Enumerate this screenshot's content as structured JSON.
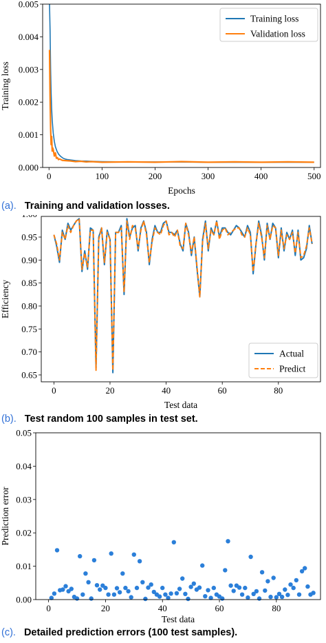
{
  "captions": [
    {
      "tag": "(a).",
      "text": "Training and validation losses."
    },
    {
      "tag": "(b).",
      "text": "Test random 100 samples in test set."
    },
    {
      "tag": "(c).",
      "text": "Detailed prediction errors (100 test samples)."
    }
  ],
  "colors": {
    "blue": "#1f77b4",
    "orange": "#ff7f0e",
    "errorDots": "#2b7fd9",
    "caption_tag": "#2f6fd6"
  },
  "chart_data": [
    {
      "type": "line",
      "xlabel": "Epochs",
      "ylabel": "Training loss",
      "xlim": [
        -12,
        512
      ],
      "ylim": [
        0,
        0.005
      ],
      "xticks": [
        0,
        100,
        200,
        300,
        400,
        500
      ],
      "yticks": [
        0.0,
        0.001,
        0.002,
        0.003,
        0.004,
        0.005
      ],
      "ytick_labels": [
        "0.000",
        "0.001",
        "0.002",
        "0.003",
        "0.004",
        "0.005"
      ],
      "legend": "top-right",
      "series": [
        {
          "name": "Training loss",
          "color": "#1f77b4",
          "x": [
            1,
            2,
            3,
            4,
            5,
            6,
            8,
            10,
            12,
            15,
            18,
            22,
            26,
            30,
            35,
            40,
            50,
            60,
            80,
            100,
            150,
            200,
            300,
            400,
            500
          ],
          "y": [
            0.005,
            0.0042,
            0.003,
            0.0023,
            0.0018,
            0.00145,
            0.00105,
            0.0008,
            0.00064,
            0.0005,
            0.00041,
            0.00034,
            0.00029,
            0.00026,
            0.00024,
            0.00023,
            0.00021,
            0.0002,
            0.00019,
            0.00018,
            0.00017,
            0.00017,
            0.00016,
            0.00016,
            0.00016
          ]
        },
        {
          "name": "Validation loss",
          "color": "#ff7f0e",
          "x": [
            1,
            2,
            3,
            4,
            5,
            6,
            7,
            8,
            10,
            12,
            14,
            16,
            18,
            20,
            25,
            30,
            40,
            50,
            60,
            70,
            80,
            100,
            150,
            200,
            250,
            300,
            350,
            400,
            450,
            500
          ],
          "y": [
            0.0036,
            0.0022,
            0.0012,
            0.0007,
            0.00095,
            0.0005,
            0.0006,
            0.00055,
            0.00035,
            0.00045,
            0.00028,
            0.0003,
            0.00024,
            0.00026,
            0.00022,
            0.00021,
            0.0002,
            0.00018,
            0.00019,
            0.00017,
            0.00018,
            0.00016,
            0.00017,
            0.00016,
            0.00018,
            0.00016,
            0.00017,
            0.00016,
            0.00017,
            0.00016
          ]
        }
      ]
    },
    {
      "type": "line",
      "xlabel": "Test data",
      "ylabel": "Efficiency",
      "xlim": [
        -4.5,
        95
      ],
      "ylim": [
        0.635,
        0.995
      ],
      "xticks": [
        0,
        20,
        40,
        60,
        80
      ],
      "yticks": [
        0.65,
        0.7,
        0.75,
        0.8,
        0.85,
        0.9,
        0.95,
        1.0
      ],
      "ytick_labels": [
        "0.65",
        "0.70",
        "0.75",
        "0.80",
        "0.85",
        "0.90",
        "0.95",
        "1.00"
      ],
      "legend": "bottom-right",
      "series": [
        {
          "name": "Actual",
          "color": "#1f77b4",
          "dash": false,
          "y": [
            0.955,
            0.93,
            0.895,
            0.965,
            0.945,
            0.98,
            0.965,
            0.975,
            0.985,
            0.99,
            0.875,
            0.92,
            0.88,
            0.97,
            0.965,
            0.665,
            0.95,
            0.97,
            0.89,
            0.965,
            0.945,
            0.655,
            0.96,
            0.96,
            0.975,
            0.825,
            0.99,
            0.95,
            0.97,
            0.975,
            0.92,
            0.97,
            0.985,
            0.96,
            0.89,
            0.945,
            0.975,
            0.96,
            0.96,
            0.98,
            0.985,
            0.96,
            0.96,
            0.955,
            0.965,
            0.935,
            0.92,
            0.98,
            0.96,
            0.91,
            0.95,
            0.88,
            0.82,
            0.945,
            0.985,
            0.92,
            0.97,
            0.955,
            0.985,
            0.95,
            0.97,
            0.97,
            0.96,
            0.955,
            0.965,
            0.975,
            0.97,
            0.96,
            0.95,
            0.975,
            0.96,
            0.87,
            0.935,
            0.985,
            0.955,
            0.9,
            0.98,
            0.945,
            0.98,
            0.97,
            0.905,
            0.97,
            0.92,
            0.96,
            0.945,
            0.965,
            0.91,
            0.965,
            0.9,
            0.905,
            0.925,
            0.975,
            0.935
          ]
        },
        {
          "name": "Predict",
          "color": "#ff7f0e",
          "dash": true,
          "y": [
            0.955,
            0.935,
            0.9,
            0.96,
            0.945,
            0.975,
            0.96,
            0.975,
            0.985,
            0.99,
            0.88,
            0.915,
            0.885,
            0.965,
            0.965,
            0.66,
            0.945,
            0.97,
            0.895,
            0.96,
            0.945,
            0.66,
            0.96,
            0.96,
            0.97,
            0.83,
            0.985,
            0.945,
            0.975,
            0.97,
            0.925,
            0.965,
            0.985,
            0.955,
            0.895,
            0.94,
            0.97,
            0.96,
            0.955,
            0.975,
            0.985,
            0.955,
            0.96,
            0.95,
            0.965,
            0.93,
            0.925,
            0.98,
            0.955,
            0.915,
            0.95,
            0.885,
            0.82,
            0.94,
            0.98,
            0.925,
            0.965,
            0.955,
            0.985,
            0.945,
            0.965,
            0.97,
            0.955,
            0.96,
            0.965,
            0.97,
            0.97,
            0.955,
            0.95,
            0.97,
            0.955,
            0.875,
            0.935,
            0.98,
            0.95,
            0.905,
            0.975,
            0.945,
            0.975,
            0.97,
            0.91,
            0.965,
            0.925,
            0.955,
            0.945,
            0.96,
            0.915,
            0.96,
            0.905,
            0.91,
            0.93,
            0.97,
            0.935
          ]
        }
      ]
    },
    {
      "type": "scatter",
      "xlabel": "Test data",
      "ylabel": "Prediction error",
      "xlim": [
        -4.5,
        95.5
      ],
      "ylim": [
        0,
        0.05
      ],
      "xticks": [
        0,
        20,
        40,
        60,
        80
      ],
      "yticks": [
        0.0,
        0.01,
        0.02,
        0.03,
        0.04,
        0.05
      ],
      "ytick_labels": [
        "0.00",
        "0.01",
        "0.02",
        "0.03",
        "0.04",
        "0.05"
      ],
      "color": "#2b7fd9",
      "x": [
        1,
        2,
        3,
        4,
        5,
        6,
        7,
        8,
        9,
        10,
        11,
        12,
        13,
        14,
        15,
        16,
        17,
        18,
        19,
        20,
        21,
        22,
        23,
        24,
        25,
        26,
        27,
        28,
        29,
        30,
        31,
        32,
        33,
        34,
        35,
        36,
        37,
        38,
        39,
        40,
        41,
        42,
        43,
        44,
        45,
        46,
        47,
        48,
        49,
        50,
        51,
        52,
        53,
        54,
        55,
        56,
        57,
        58,
        59,
        60,
        61,
        62,
        63,
        64,
        65,
        66,
        67,
        68,
        69,
        70,
        71,
        72,
        73,
        74,
        75,
        76,
        77,
        78,
        79,
        80,
        81,
        82,
        83,
        84,
        85,
        86,
        87,
        88,
        89,
        90,
        91,
        92,
        93
      ],
      "y": [
        0.0005,
        0.0018,
        0.0148,
        0.0028,
        0.003,
        0.004,
        0.0025,
        0.0032,
        0.0008,
        0.0003,
        0.013,
        0.0015,
        0.0078,
        0.0052,
        0.0003,
        0.0118,
        0.0043,
        0.003,
        0.0042,
        0.0035,
        0.0015,
        0.0138,
        0.0015,
        0.0034,
        0.0022,
        0.0078,
        0.0035,
        0.0025,
        0.0007,
        0.0135,
        0.0035,
        0.0115,
        0.0052,
        0.0002,
        0.0036,
        0.0045,
        0.0023,
        0.0015,
        0.0009,
        0.0035,
        0.0015,
        0.0005,
        0.0018,
        0.0172,
        0.0019,
        0.0032,
        0.0063,
        0.0017,
        0.0002,
        0.0038,
        0.0048,
        0.003,
        0.0036,
        0.0102,
        0.001,
        0.0028,
        0.0005,
        0.0035,
        0.0015,
        0.0009,
        0.0003,
        0.0088,
        0.0175,
        0.0042,
        0.0026,
        0.0042,
        0.0036,
        0.0015,
        0.0035,
        0.0006,
        0.0128,
        0.0017,
        0.0025,
        0.0003,
        0.0082,
        0.0027,
        0.0055,
        0.0008,
        0.0065,
        0.0007,
        0.0017,
        0.0008,
        0.003,
        0.0014,
        0.0045,
        0.0035,
        0.0058,
        0.0015,
        0.0085,
        0.0094,
        0.0039,
        0.0015,
        0.002
      ]
    }
  ]
}
